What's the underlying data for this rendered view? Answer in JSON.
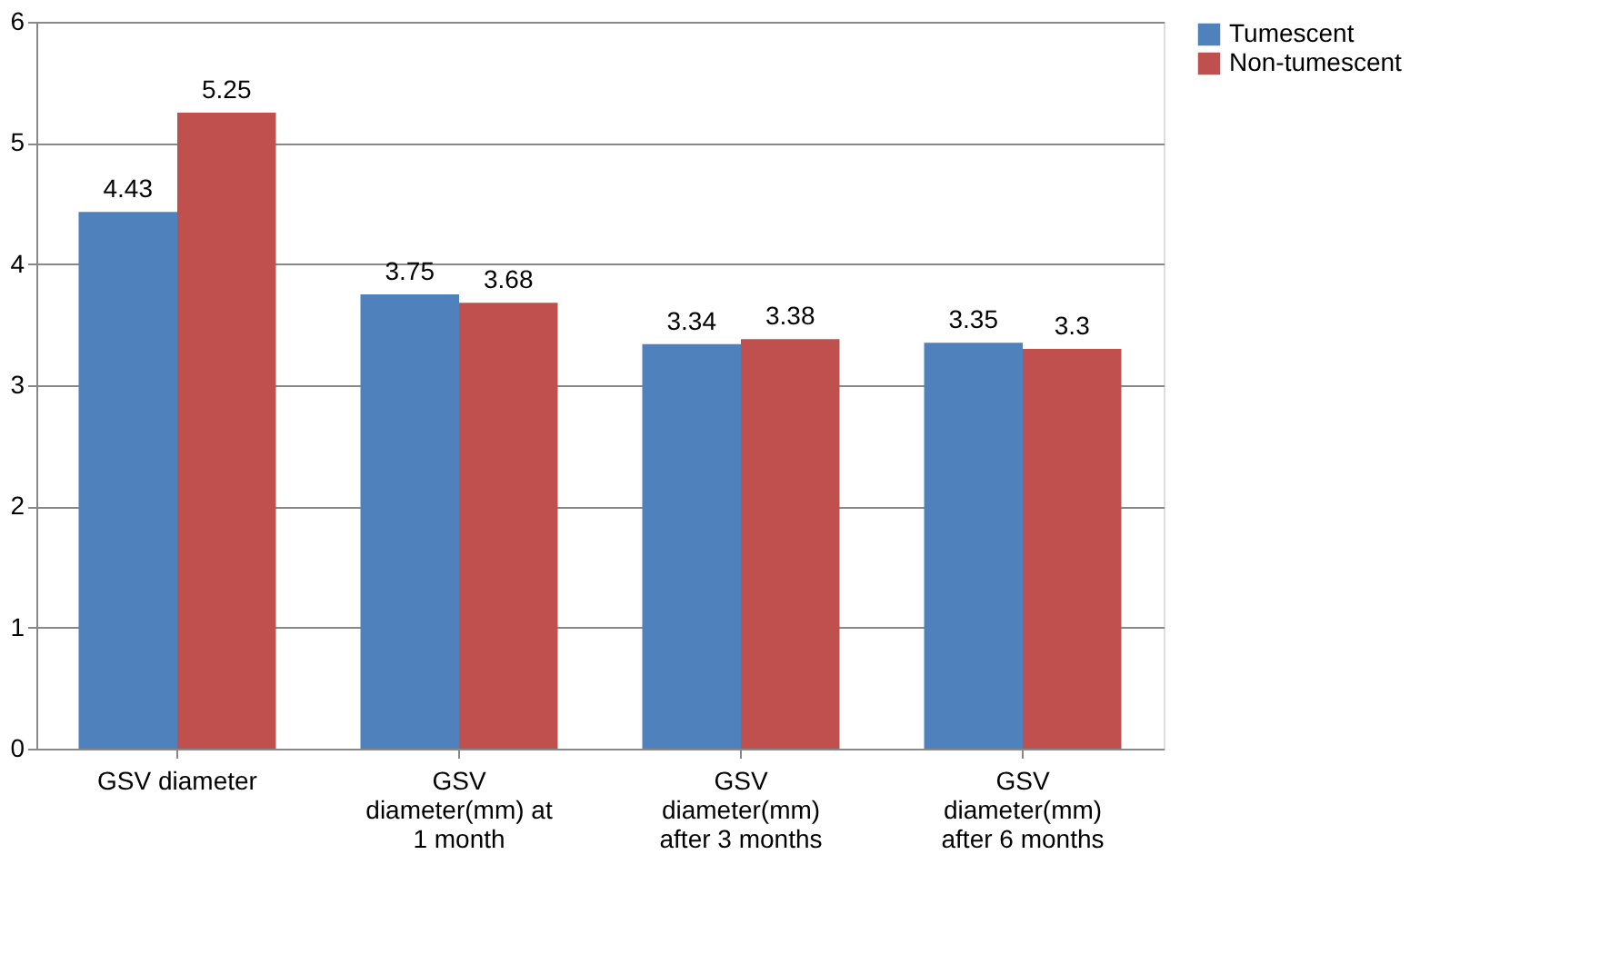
{
  "chart_data": {
    "type": "bar",
    "categories": [
      "GSV diameter",
      "GSV diameter(mm) at 1 month",
      "GSV diameter(mm) after 3 months",
      "GSV diameter(mm) after 6 months"
    ],
    "series": [
      {
        "name": "Tumescent",
        "color": "#4f81bd",
        "values": [
          4.43,
          3.75,
          3.34,
          3.35
        ]
      },
      {
        "name": "Non-tumescent",
        "color": "#c0504d",
        "values": [
          5.25,
          3.68,
          3.38,
          3.3
        ]
      }
    ],
    "ylim": [
      0,
      6
    ],
    "yticks": [
      0,
      1,
      2,
      3,
      4,
      5,
      6
    ],
    "grid": "y",
    "legend": "right",
    "data_labels": true
  }
}
